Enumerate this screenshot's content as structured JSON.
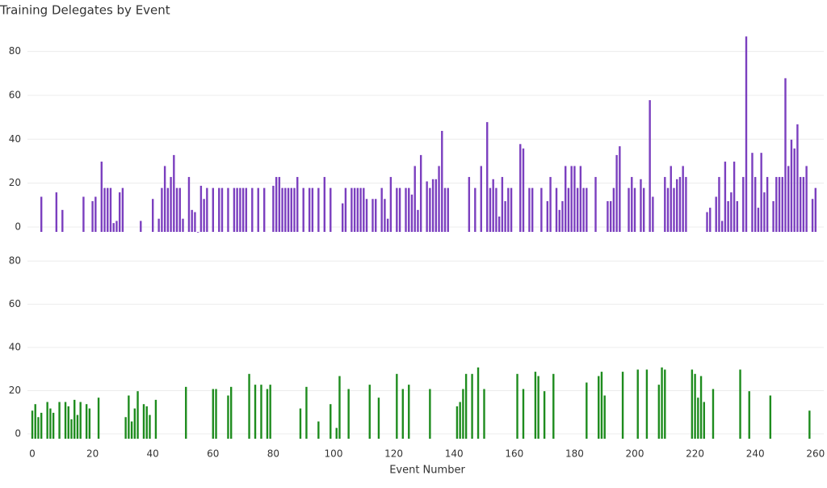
{
  "chart_data": {
    "type": "bar",
    "title": "Training Delegates by Event",
    "x_label": "Event Number",
    "xlim": [
      -1,
      262
    ],
    "xticks": [
      0,
      20,
      40,
      60,
      80,
      100,
      120,
      140,
      160,
      180,
      200,
      220,
      240,
      260
    ],
    "grid": true,
    "panels": [
      {
        "color": "#7b3fbf",
        "ylim": [
          0,
          92
        ],
        "yticks": [
          0,
          20,
          40,
          60,
          80
        ],
        "x": [
          3,
          8,
          10,
          17,
          20,
          21,
          23,
          24,
          25,
          26,
          27,
          28,
          29,
          30,
          36,
          40,
          42,
          43,
          44,
          45,
          46,
          47,
          48,
          49,
          50,
          52,
          53,
          54,
          55,
          56,
          57,
          58,
          60,
          62,
          63,
          65,
          67,
          68,
          69,
          70,
          71,
          73,
          75,
          77,
          80,
          81,
          82,
          83,
          84,
          85,
          86,
          87,
          88,
          90,
          92,
          93,
          95,
          97,
          99,
          103,
          104,
          106,
          107,
          108,
          109,
          110,
          111,
          113,
          114,
          116,
          117,
          118,
          119,
          121,
          122,
          124,
          125,
          126,
          127,
          128,
          129,
          131,
          132,
          133,
          134,
          135,
          136,
          137,
          138,
          145,
          147,
          149,
          151,
          152,
          153,
          154,
          155,
          156,
          157,
          158,
          159,
          162,
          163,
          165,
          166,
          169,
          171,
          172,
          174,
          175,
          176,
          177,
          178,
          179,
          180,
          181,
          182,
          183,
          184,
          187,
          191,
          192,
          193,
          194,
          195,
          198,
          199,
          200,
          202,
          203,
          205,
          206,
          210,
          211,
          212,
          213,
          214,
          215,
          216,
          217,
          224,
          225,
          227,
          228,
          229,
          230,
          231,
          232,
          233,
          234,
          236,
          237,
          239,
          240,
          241,
          242,
          243,
          244,
          246,
          247,
          248,
          249,
          250,
          251,
          252,
          253,
          254,
          255,
          256,
          257,
          259,
          260
        ],
        "values": [
          16,
          18,
          10,
          16,
          14,
          16,
          32,
          20,
          20,
          20,
          4,
          5,
          18,
          20,
          5,
          15,
          6,
          20,
          30,
          20,
          25,
          35,
          20,
          20,
          6,
          25,
          10,
          9,
          0,
          21,
          15,
          20,
          20,
          20,
          20,
          20,
          20,
          20,
          20,
          20,
          20,
          20,
          20,
          20,
          21,
          25,
          25,
          20,
          20,
          20,
          20,
          20,
          25,
          20,
          20,
          20,
          20,
          25,
          20,
          13,
          20,
          20,
          20,
          20,
          20,
          20,
          15,
          15,
          15,
          20,
          15,
          6,
          25,
          20,
          20,
          20,
          20,
          17,
          30,
          10,
          35,
          23,
          20,
          24,
          24,
          30,
          46,
          20,
          20,
          25,
          20,
          30,
          50,
          20,
          24,
          20,
          7,
          25,
          14,
          20,
          20,
          40,
          38,
          20,
          20,
          20,
          14,
          25,
          20,
          10,
          14,
          30,
          20,
          30,
          30,
          20,
          30,
          20,
          20,
          25,
          14,
          14,
          20,
          35,
          39,
          20,
          25,
          20,
          24,
          20,
          60,
          16,
          25,
          20,
          30,
          20,
          24,
          25,
          30,
          25,
          9,
          11,
          16,
          25,
          5,
          32,
          14,
          18,
          32,
          14,
          25,
          89,
          36,
          25,
          11,
          36,
          18,
          25,
          14,
          25,
          25,
          25,
          70,
          30,
          42,
          38,
          49,
          25,
          25,
          30,
          15,
          20
        ]
      },
      {
        "color": "#1e8c1e",
        "ylim": [
          0,
          92
        ],
        "yticks": [
          0,
          20,
          40,
          60,
          80
        ],
        "x": [
          0,
          1,
          2,
          3,
          5,
          6,
          7,
          9,
          11,
          12,
          13,
          14,
          15,
          16,
          18,
          19,
          22,
          31,
          32,
          33,
          34,
          35,
          37,
          38,
          39,
          41,
          51,
          60,
          61,
          65,
          66,
          72,
          74,
          76,
          78,
          79,
          89,
          91,
          95,
          99,
          101,
          102,
          105,
          112,
          115,
          121,
          123,
          125,
          132,
          141,
          142,
          143,
          144,
          146,
          148,
          150,
          161,
          163,
          167,
          168,
          170,
          173,
          184,
          188,
          189,
          190,
          196,
          201,
          204,
          208,
          209,
          210,
          219,
          220,
          221,
          222,
          223,
          226,
          235,
          238,
          245,
          258
        ],
        "values": [
          13,
          16,
          10,
          12,
          17,
          14,
          12,
          17,
          17,
          15,
          9,
          18,
          11,
          17,
          16,
          14,
          19,
          10,
          20,
          8,
          14,
          22,
          16,
          15,
          11,
          18,
          24,
          23,
          23,
          20,
          24,
          30,
          25,
          25,
          23,
          25,
          14,
          24,
          8,
          16,
          5,
          29,
          23,
          25,
          19,
          30,
          23,
          25,
          23,
          15,
          17,
          23,
          30,
          30,
          33,
          23,
          30,
          23,
          31,
          29,
          22,
          30,
          26,
          29,
          31,
          20,
          31,
          32,
          32,
          25,
          33,
          32,
          32,
          30,
          19,
          29,
          17,
          23,
          32,
          22,
          20,
          13
        ]
      }
    ]
  }
}
